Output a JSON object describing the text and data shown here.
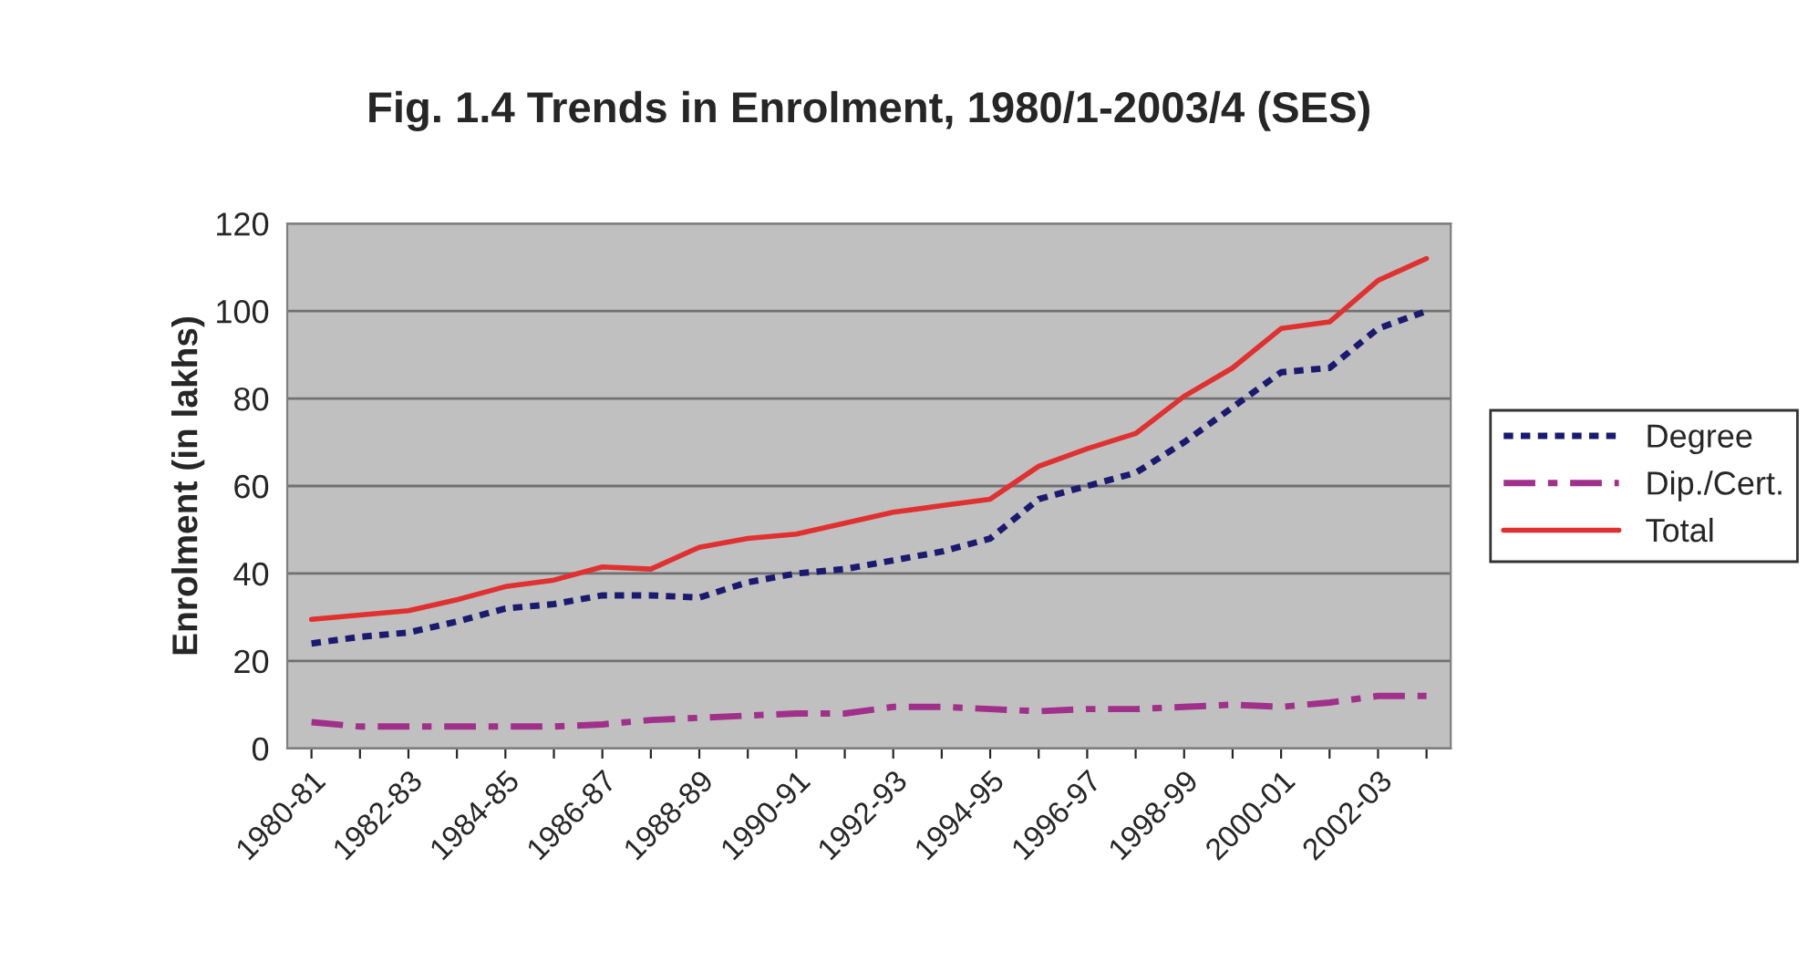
{
  "chart_data": {
    "type": "line",
    "title": "Fig. 1.4 Trends in Enrolment, 1980/1-2003/4 (SES)",
    "ylabel": "Enrolment (in lakhs)",
    "categories": [
      "1980-81",
      null,
      "1982-83",
      null,
      "1984-85",
      null,
      "1986-87",
      null,
      "1988-89",
      null,
      "1990-91",
      null,
      "1992-93",
      null,
      "1994-95",
      null,
      "1996-97",
      null,
      "1998-99",
      null,
      "2000-01",
      null,
      "2002-03",
      null
    ],
    "series": [
      {
        "name": "Degree",
        "color": "#1a1a70",
        "line_style": "dotted",
        "values": [
          24,
          25.5,
          26.5,
          29,
          32,
          33,
          35,
          35,
          34.5,
          38,
          40,
          41,
          43,
          45,
          48,
          57,
          60,
          63,
          70,
          78,
          86,
          87,
          96,
          100
        ]
      },
      {
        "name": "Dip./Cert.",
        "color": "#a0308a",
        "line_style": "dashdot",
        "values": [
          6,
          5,
          5,
          5,
          5,
          5,
          5.5,
          6.5,
          7,
          7.5,
          8,
          8,
          9.5,
          9.5,
          9,
          8.5,
          9,
          9,
          9.5,
          10,
          9.5,
          10.5,
          12,
          12
        ]
      },
      {
        "name": "Total",
        "color": "#e03030",
        "line_style": "solid",
        "values": [
          29.5,
          30.5,
          31.5,
          34,
          37,
          38.5,
          41.5,
          41,
          46,
          48,
          49,
          51.5,
          54,
          55.5,
          57,
          64.5,
          68.5,
          72,
          80.5,
          87,
          96,
          97.5,
          107,
          112
        ]
      }
    ],
    "ylim": [
      0,
      120
    ],
    "yticks": [
      0,
      20,
      40,
      60,
      80,
      100,
      120
    ],
    "grid": "y",
    "legend": "right"
  }
}
